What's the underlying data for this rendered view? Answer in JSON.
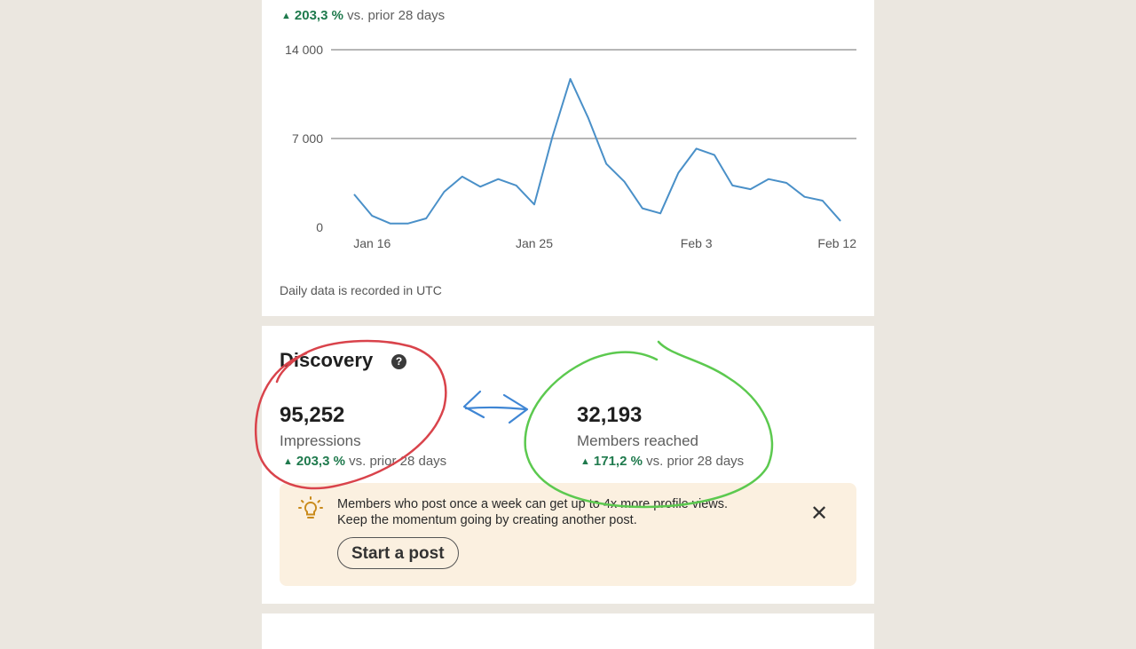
{
  "impressions_chart": {
    "trend": {
      "value": "203,3 %",
      "text": "vs. prior 28 days"
    },
    "note": "Daily data is recorded in UTC"
  },
  "discovery": {
    "title": "Discovery",
    "help_icon": "help-icon",
    "impressions": {
      "value": "95,252",
      "label": "Impressions",
      "trend_value": "203,3 %",
      "trend_text": "vs. prior 28 days"
    },
    "members_reached": {
      "value": "32,193",
      "label": "Members reached",
      "trend_value": "171,2 %",
      "trend_text": "vs. prior 28 days"
    },
    "tip": {
      "icon": "lightbulb-icon",
      "line1": "Members who post once a week can get up to 4x more profile views.",
      "line2": "Keep the momentum going by creating another post.",
      "button": "Start a post",
      "close_icon": "close-icon"
    }
  },
  "colors": {
    "line": "#4a90c8",
    "positive": "#1f7a4d",
    "annotation_red": "#d9434b",
    "annotation_green": "#5cc94f",
    "annotation_blue": "#3f86d4",
    "tip_bg": "#fbf0e0"
  },
  "chart_data": {
    "type": "line",
    "x_ticks": [
      "Jan 16",
      "Jan 25",
      "Feb 3",
      "Feb 12"
    ],
    "y_ticks": [
      "14 000",
      "7 000",
      "0"
    ],
    "ylim": [
      0,
      14000
    ],
    "grid": true,
    "series": [
      {
        "x": [
          "Jan 15",
          "Jan 16",
          "Jan 17",
          "Jan 18",
          "Jan 19",
          "Jan 20",
          "Jan 21",
          "Jan 22",
          "Jan 23",
          "Jan 24",
          "Jan 25",
          "Jan 26",
          "Jan 27",
          "Jan 28",
          "Jan 29",
          "Jan 30",
          "Jan 31",
          "Feb 1",
          "Feb 2",
          "Feb 3",
          "Feb 4",
          "Feb 5",
          "Feb 6",
          "Feb 7",
          "Feb 8",
          "Feb 9",
          "Feb 10",
          "Feb 11",
          "Feb 12"
        ],
        "values": [
          2600,
          900,
          300,
          300,
          700,
          2800,
          4000,
          3200,
          3800,
          3300,
          1800,
          7100,
          11700,
          8600,
          5000,
          3600,
          1500,
          1100,
          4300,
          6200,
          5700,
          3300,
          3000,
          3800,
          3500,
          2400,
          2100,
          500,
          null
        ]
      }
    ]
  }
}
